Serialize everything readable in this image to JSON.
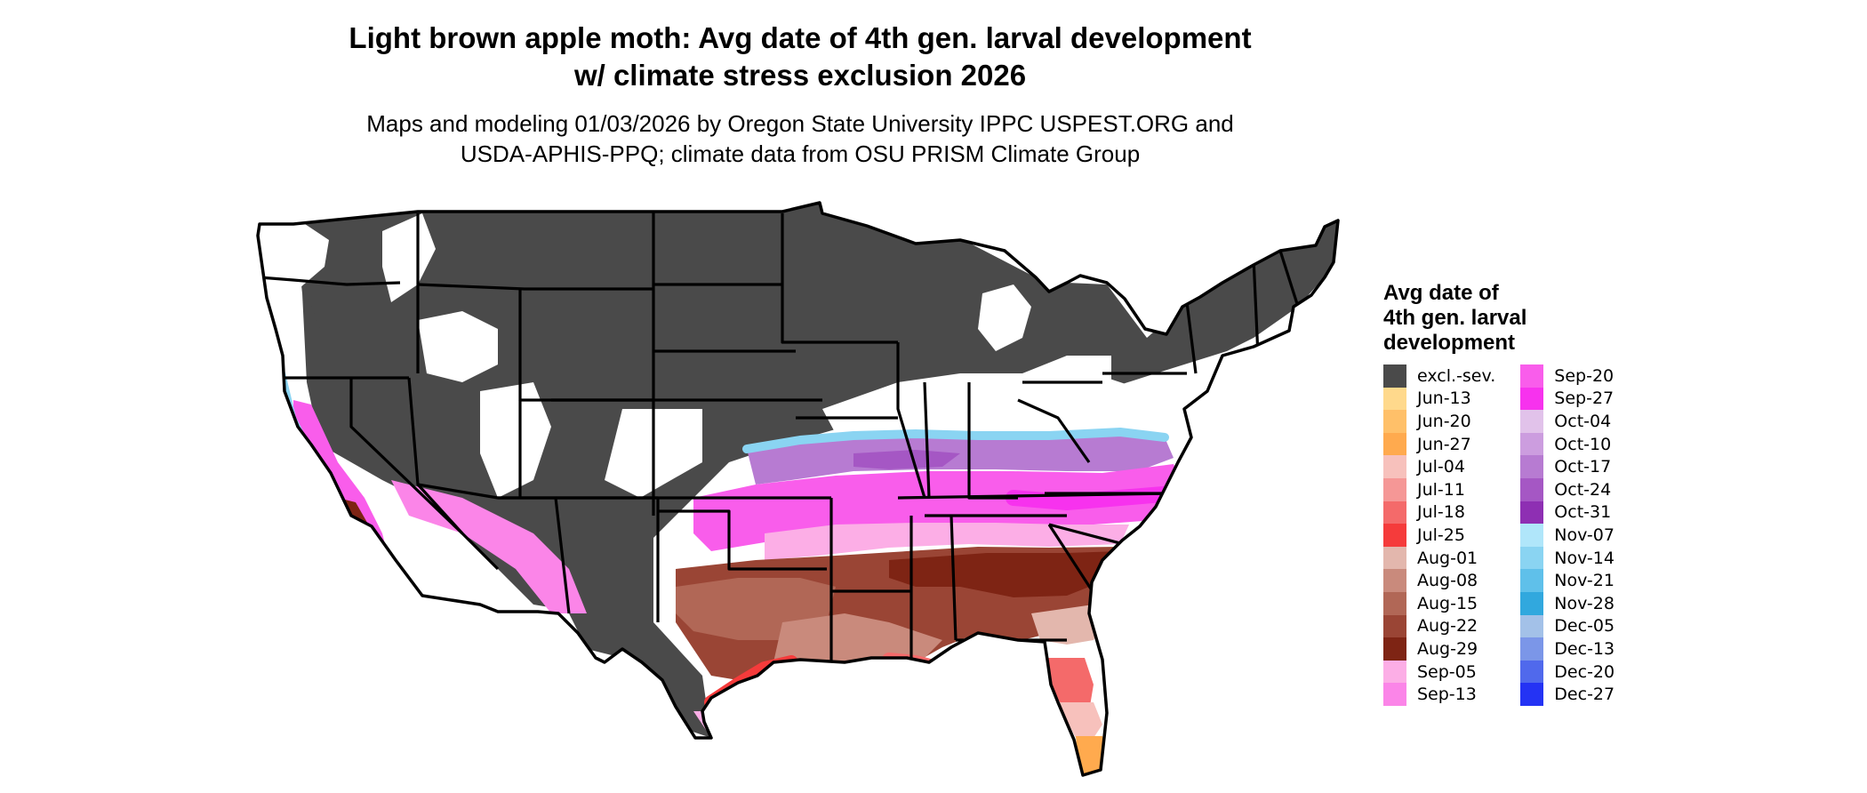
{
  "map": {
    "title_line1": "Light brown apple moth: Avg date of 4th gen. larval development",
    "title_line2": "w/ climate stress exclusion 2026",
    "subtitle_line1": "Maps and modeling 01/03/2026 by Oregon State University IPPC USPEST.ORG and",
    "subtitle_line2": "USDA-APHIS-PPQ; climate data from OSU PRISM Climate Group"
  },
  "legend": {
    "title_lines": [
      "Avg date of",
      "4th gen. larval",
      "development"
    ],
    "items": [
      {
        "label": "excl.-sev.",
        "color": "#4a4a4a"
      },
      {
        "label": "Jun-13",
        "color": "#ffd98c"
      },
      {
        "label": "Jun-20",
        "color": "#ffc069"
      },
      {
        "label": "Jun-27",
        "color": "#ffaa4e"
      },
      {
        "label": "Jul-04",
        "color": "#f7c1bc"
      },
      {
        "label": "Jul-11",
        "color": "#f59796"
      },
      {
        "label": "Jul-18",
        "color": "#f46a6a"
      },
      {
        "label": "Jul-25",
        "color": "#f53b3b"
      },
      {
        "label": "Aug-01",
        "color": "#e3b7ad"
      },
      {
        "label": "Aug-08",
        "color": "#c98a7c"
      },
      {
        "label": "Aug-15",
        "color": "#b16756"
      },
      {
        "label": "Aug-22",
        "color": "#9a4535"
      },
      {
        "label": "Aug-29",
        "color": "#7e2414"
      },
      {
        "label": "Sep-05",
        "color": "#fcaee6"
      },
      {
        "label": "Sep-13",
        "color": "#fb85e8"
      },
      {
        "label": "Sep-20",
        "color": "#f95deb"
      },
      {
        "label": "Sep-27",
        "color": "#f732ee"
      },
      {
        "label": "Oct-04",
        "color": "#e1c2ea"
      },
      {
        "label": "Oct-10",
        "color": "#cc9ddf"
      },
      {
        "label": "Oct-17",
        "color": "#b77bd2"
      },
      {
        "label": "Oct-24",
        "color": "#a557c4"
      },
      {
        "label": "Oct-31",
        "color": "#8e2fb3"
      },
      {
        "label": "Nov-07",
        "color": "#b0e6fa"
      },
      {
        "label": "Nov-14",
        "color": "#8ad4f2"
      },
      {
        "label": "Nov-21",
        "color": "#5fc0ea"
      },
      {
        "label": "Nov-28",
        "color": "#31a8de"
      },
      {
        "label": "Dec-05",
        "color": "#a3c1e8"
      },
      {
        "label": "Dec-13",
        "color": "#7b96e8"
      },
      {
        "label": "Dec-20",
        "color": "#5069ec"
      },
      {
        "label": "Dec-27",
        "color": "#2433f4"
      }
    ]
  }
}
